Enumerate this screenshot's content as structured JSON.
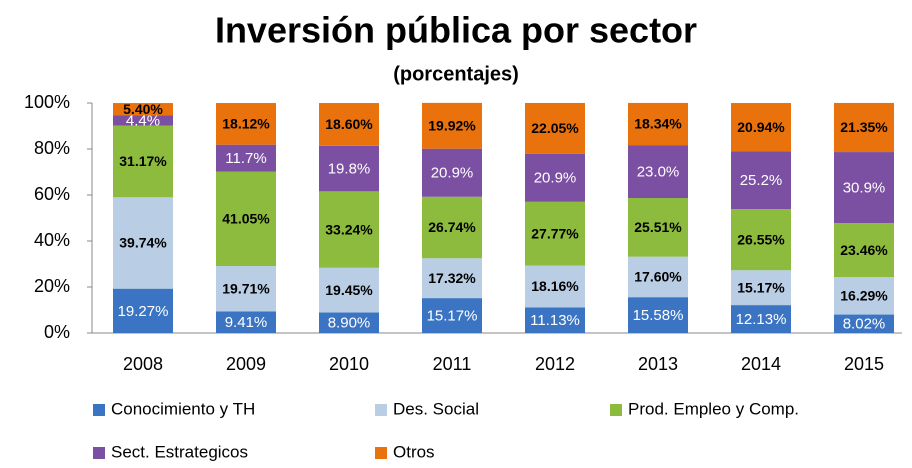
{
  "chart_data": {
    "type": "stacked_bar_percent",
    "title": "Inversión pública por sector",
    "subtitle": "(porcentajes)",
    "categories": [
      "2008",
      "2009",
      "2010",
      "2011",
      "2012",
      "2013",
      "2014",
      "2015"
    ],
    "series": [
      {
        "name": "Conocimiento y TH",
        "color": "#3b74c2",
        "label_color": "#ffffff",
        "values": [
          19.27,
          9.41,
          8.9,
          15.17,
          11.13,
          15.58,
          12.13,
          8.02
        ],
        "value_labels": [
          "19.27%",
          "9.41%",
          "8.90%",
          "15.17%",
          "11.13%",
          "15.58%",
          "12.13%",
          "8.02%"
        ]
      },
      {
        "name": "Des. Social",
        "color": "#b9cde5",
        "label_color": "#000000",
        "values": [
          39.74,
          19.71,
          19.45,
          17.32,
          18.16,
          17.6,
          15.17,
          16.29
        ],
        "value_labels": [
          "39.74%",
          "19.71%",
          "19.45%",
          "17.32%",
          "18.16%",
          "17.60%",
          "15.17%",
          "16.29%"
        ]
      },
      {
        "name": "Prod. Empleo y Comp.",
        "color": "#8dbb3e",
        "label_color": "#000000",
        "values": [
          31.17,
          41.05,
          33.24,
          26.74,
          27.77,
          25.51,
          26.55,
          23.46
        ],
        "value_labels": [
          "31.17%",
          "41.05%",
          "33.24%",
          "26.74%",
          "27.77%",
          "25.51%",
          "26.55%",
          "23.46%"
        ]
      },
      {
        "name": "Sect. Estrategicos",
        "color": "#7b4fa1",
        "label_color": "#ffffff",
        "values": [
          4.4,
          11.7,
          19.8,
          20.9,
          20.9,
          23.0,
          25.2,
          30.9
        ],
        "value_labels": [
          "4.4%",
          "11.7%",
          "19.8%",
          "20.9%",
          "20.9%",
          "23.0%",
          "25.2%",
          "30.9%"
        ]
      },
      {
        "name": "Otros",
        "color": "#ea720c",
        "label_color": "#000000",
        "values": [
          5.4,
          18.12,
          18.6,
          19.92,
          22.05,
          18.34,
          20.94,
          21.35
        ],
        "value_labels": [
          "5.40%",
          "18.12%",
          "18.60%",
          "19.92%",
          "22.05%",
          "18.34%",
          "20.94%",
          "21.35%"
        ]
      }
    ],
    "ylim": [
      0,
      100
    ],
    "yticks": [
      {
        "value": 0,
        "label": "0%"
      },
      {
        "value": 20,
        "label": "20%"
      },
      {
        "value": 40,
        "label": "40%"
      },
      {
        "value": 60,
        "label": "60%"
      },
      {
        "value": 80,
        "label": "80%"
      },
      {
        "value": 100,
        "label": "100%"
      }
    ],
    "grid": false
  }
}
